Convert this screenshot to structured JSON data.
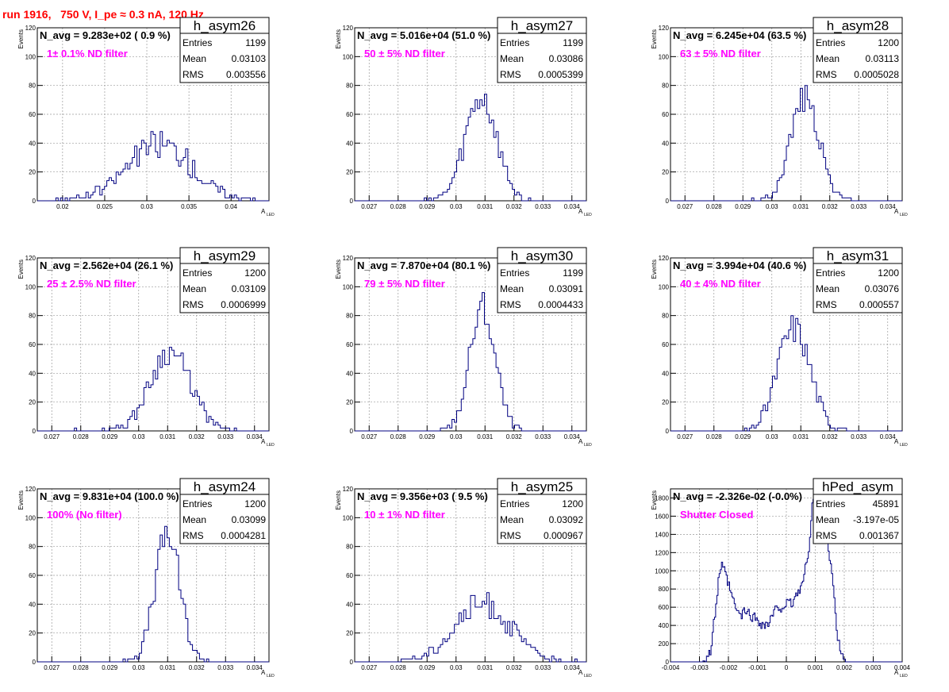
{
  "header": {
    "run_title": "run 1916,   750 V, I_pe ≈ 0.3 nA, 120 Hz"
  },
  "colors": {
    "title": "#ff0000",
    "annotation": "#ff00ff",
    "histogram": "#000080",
    "grid": "#9a9a9a",
    "text": "#000000"
  },
  "labels": {
    "ylabel": "Events",
    "xlabel": "A",
    "xlabel_sub": "LED",
    "entries": "Entries",
    "mean": "Mean",
    "rms": "RMS"
  },
  "chart_data": [
    {
      "type": "bar",
      "name": "h_asym26",
      "title": "N_avg = 9.283e+02 ( 0.9 %)",
      "annotation": "1± 0.1% ND filter",
      "stats": {
        "entries": "1199",
        "mean": "0.03103",
        "rms": "0.003556"
      },
      "xlim": [
        0.017,
        0.0445
      ],
      "ylim": [
        0,
        120
      ],
      "xticks": [
        0.02,
        0.025,
        0.03,
        0.035,
        0.04
      ],
      "xtick_labels": [
        "0.02",
        "0.025",
        "0.03",
        "0.035",
        "0.04"
      ],
      "yticks": [
        0,
        20,
        40,
        60,
        80,
        100,
        120
      ],
      "ytick_labels": [
        "0",
        "20",
        "40",
        "60",
        "80",
        "100",
        "120"
      ],
      "grid": true,
      "hist_center": 0.0315,
      "hist_sigma": 0.0038,
      "hist_peak": 40,
      "hist_noise": 10,
      "hist_seed": 26
    },
    {
      "type": "bar",
      "name": "h_asym27",
      "title": "N_avg = 5.016e+04 (51.0 %)",
      "annotation": "50 ± 5% ND filter",
      "stats": {
        "entries": "1199",
        "mean": "0.03086",
        "rms": "0.0005399"
      },
      "xlim": [
        0.0265,
        0.0345
      ],
      "ylim": [
        0,
        120
      ],
      "xticks": [
        0.027,
        0.028,
        0.029,
        0.03,
        0.031,
        0.032,
        0.033,
        0.034
      ],
      "xtick_labels": [
        "0.027",
        "0.028",
        "0.029",
        "0.03",
        "0.031",
        "0.032",
        "0.033",
        "0.034"
      ],
      "yticks": [
        0,
        20,
        40,
        60,
        80,
        100,
        120
      ],
      "ytick_labels": [
        "0",
        "20",
        "40",
        "60",
        "80",
        "100",
        "120"
      ],
      "grid": true,
      "hist_center": 0.03086,
      "hist_sigma": 0.00054,
      "hist_peak": 70,
      "hist_noise": 12,
      "hist_seed": 27
    },
    {
      "type": "bar",
      "name": "h_asym28",
      "title": "N_avg = 6.245e+04 (63.5 %)",
      "annotation": "63 ± 5% ND filter",
      "stats": {
        "entries": "1200",
        "mean": "0.03113",
        "rms": "0.0005028"
      },
      "xlim": [
        0.0265,
        0.0345
      ],
      "ylim": [
        0,
        120
      ],
      "xticks": [
        0.027,
        0.028,
        0.029,
        0.03,
        0.031,
        0.032,
        0.033,
        0.034
      ],
      "xtick_labels": [
        "0.027",
        "0.028",
        "0.029",
        "0.03",
        "0.031",
        "0.032",
        "0.033",
        "0.034"
      ],
      "yticks": [
        0,
        20,
        40,
        60,
        80,
        100,
        120
      ],
      "ytick_labels": [
        "0",
        "20",
        "40",
        "60",
        "80",
        "100",
        "120"
      ],
      "grid": true,
      "hist_center": 0.03113,
      "hist_sigma": 0.0005,
      "hist_peak": 72,
      "hist_noise": 10,
      "hist_seed": 28
    },
    {
      "type": "bar",
      "name": "h_asym29",
      "title": "N_avg = 2.562e+04 (26.1 %)",
      "annotation": "25 ± 2.5% ND filter",
      "stats": {
        "entries": "1200",
        "mean": "0.03109",
        "rms": "0.0006999"
      },
      "xlim": [
        0.0265,
        0.0345
      ],
      "ylim": [
        0,
        120
      ],
      "xticks": [
        0.027,
        0.028,
        0.029,
        0.03,
        0.031,
        0.032,
        0.033,
        0.034
      ],
      "xtick_labels": [
        "0.027",
        "0.028",
        "0.029",
        "0.03",
        "0.031",
        "0.032",
        "0.033",
        "0.034"
      ],
      "yticks": [
        0,
        20,
        40,
        60,
        80,
        100,
        120
      ],
      "ytick_labels": [
        "0",
        "20",
        "40",
        "60",
        "80",
        "100",
        "120"
      ],
      "grid": true,
      "hist_center": 0.03109,
      "hist_sigma": 0.0007,
      "hist_peak": 55,
      "hist_noise": 9,
      "hist_seed": 29
    },
    {
      "type": "bar",
      "name": "h_asym30",
      "title": "N_avg = 7.870e+04 (80.1 %)",
      "annotation": "79 ± 5% ND filter",
      "stats": {
        "entries": "1199",
        "mean": "0.03091",
        "rms": "0.0004433"
      },
      "xlim": [
        0.0265,
        0.0345
      ],
      "ylim": [
        0,
        120
      ],
      "xticks": [
        0.027,
        0.028,
        0.029,
        0.03,
        0.031,
        0.032,
        0.033,
        0.034
      ],
      "xtick_labels": [
        "0.027",
        "0.028",
        "0.029",
        "0.03",
        "0.031",
        "0.032",
        "0.033",
        "0.034"
      ],
      "yticks": [
        0,
        20,
        40,
        60,
        80,
        100,
        120
      ],
      "ytick_labels": [
        "0",
        "20",
        "40",
        "60",
        "80",
        "100",
        "120"
      ],
      "grid": true,
      "hist_center": 0.03091,
      "hist_sigma": 0.00044,
      "hist_peak": 85,
      "hist_noise": 12,
      "hist_seed": 30
    },
    {
      "type": "bar",
      "name": "h_asym31",
      "title": "N_avg = 3.994e+04 (40.6 %)",
      "annotation": "40 ± 4% ND filter",
      "stats": {
        "entries": "1200",
        "mean": "0.03076",
        "rms": "0.000557"
      },
      "xlim": [
        0.0265,
        0.0345
      ],
      "ylim": [
        0,
        120
      ],
      "xticks": [
        0.027,
        0.028,
        0.029,
        0.03,
        0.031,
        0.032,
        0.033,
        0.034
      ],
      "xtick_labels": [
        "0.027",
        "0.028",
        "0.029",
        "0.03",
        "0.031",
        "0.032",
        "0.033",
        "0.034"
      ],
      "yticks": [
        0,
        20,
        40,
        60,
        80,
        100,
        120
      ],
      "ytick_labels": [
        "0",
        "20",
        "40",
        "60",
        "80",
        "100",
        "120"
      ],
      "grid": true,
      "hist_center": 0.03076,
      "hist_sigma": 0.00056,
      "hist_peak": 72,
      "hist_noise": 11,
      "hist_seed": 31
    },
    {
      "type": "bar",
      "name": "h_asym24",
      "title": "N_avg = 9.831e+04 (100.0 %)",
      "annotation": "100% (No filter)",
      "stats": {
        "entries": "1200",
        "mean": "0.03099",
        "rms": "0.0004281"
      },
      "xlim": [
        0.0265,
        0.0345
      ],
      "ylim": [
        0,
        120
      ],
      "xticks": [
        0.027,
        0.028,
        0.029,
        0.03,
        0.031,
        0.032,
        0.033,
        0.034
      ],
      "xtick_labels": [
        "0.027",
        "0.028",
        "0.029",
        "0.03",
        "0.031",
        "0.032",
        "0.033",
        "0.034"
      ],
      "yticks": [
        0,
        20,
        40,
        60,
        80,
        100,
        120
      ],
      "ytick_labels": [
        "0",
        "20",
        "40",
        "60",
        "80",
        "100",
        "120"
      ],
      "grid": true,
      "hist_center": 0.03099,
      "hist_sigma": 0.00043,
      "hist_peak": 88,
      "hist_noise": 12,
      "hist_seed": 24
    },
    {
      "type": "bar",
      "name": "h_asym25",
      "title": "N_avg = 9.356e+03 ( 9.5 %)",
      "annotation": "10 ± 1% ND filter",
      "stats": {
        "entries": "1200",
        "mean": "0.03092",
        "rms": "0.000967"
      },
      "xlim": [
        0.0265,
        0.0345
      ],
      "ylim": [
        0,
        120
      ],
      "xticks": [
        0.027,
        0.028,
        0.029,
        0.03,
        0.031,
        0.032,
        0.033,
        0.034
      ],
      "xtick_labels": [
        "0.027",
        "0.028",
        "0.029",
        "0.03",
        "0.031",
        "0.032",
        "0.033",
        "0.034"
      ],
      "yticks": [
        0,
        20,
        40,
        60,
        80,
        100,
        120
      ],
      "ytick_labels": [
        "0",
        "20",
        "40",
        "60",
        "80",
        "100",
        "120"
      ],
      "grid": true,
      "hist_center": 0.03092,
      "hist_sigma": 0.00097,
      "hist_peak": 40,
      "hist_noise": 9,
      "hist_seed": 25
    },
    {
      "type": "bar",
      "name": "hPed_asym",
      "title": "N_avg = -2.326e-02 (-0.0%)",
      "annotation": "Shutter Closed",
      "stats": {
        "entries": "45891",
        "mean": "-3.197e-05",
        "rms": "0.001367"
      },
      "xlim": [
        -0.004,
        0.004
      ],
      "ylim": [
        0,
        1900
      ],
      "xticks": [
        -0.004,
        -0.003,
        -0.002,
        -0.001,
        0,
        0.001,
        0.002,
        0.003,
        0.004
      ],
      "xtick_labels": [
        "-0.004",
        "-0.003",
        "-0.002",
        "-0.001",
        "0",
        "0.001",
        "0.002",
        "0.003",
        "0.004"
      ],
      "yticks": [
        0,
        200,
        400,
        600,
        800,
        1000,
        1200,
        1400,
        1600,
        1800
      ],
      "ytick_labels": [
        "0",
        "200",
        "400",
        "600",
        "800",
        "1000",
        "1200",
        "1400",
        "1600",
        "1800"
      ],
      "grid": true,
      "profile_x": [
        -0.0038,
        -0.0029,
        -0.0026,
        -0.0024,
        -0.0023,
        -0.0022,
        -0.002,
        -0.0018,
        -0.0016,
        -0.0014,
        -0.0012,
        -0.001,
        -0.0008,
        -0.0006,
        -0.0004,
        -0.0002,
        0,
        0.0002,
        0.0004,
        0.0006,
        0.0008,
        0.0009,
        0.001,
        0.0011,
        0.0012,
        0.0013,
        0.0014,
        0.0015,
        0.0016,
        0.0017,
        0.0018,
        0.0019,
        0.002,
        0.0021,
        0.0024
      ],
      "profile_y": [
        0,
        0,
        120,
        700,
        1000,
        1050,
        850,
        630,
        500,
        560,
        500,
        470,
        400,
        420,
        560,
        600,
        630,
        640,
        760,
        900,
        1300,
        1750,
        1820,
        1500,
        1320,
        1450,
        1400,
        1150,
        900,
        500,
        200,
        100,
        20,
        0,
        0
      ],
      "hist_seed": 99,
      "hist_noise": 60
    }
  ]
}
